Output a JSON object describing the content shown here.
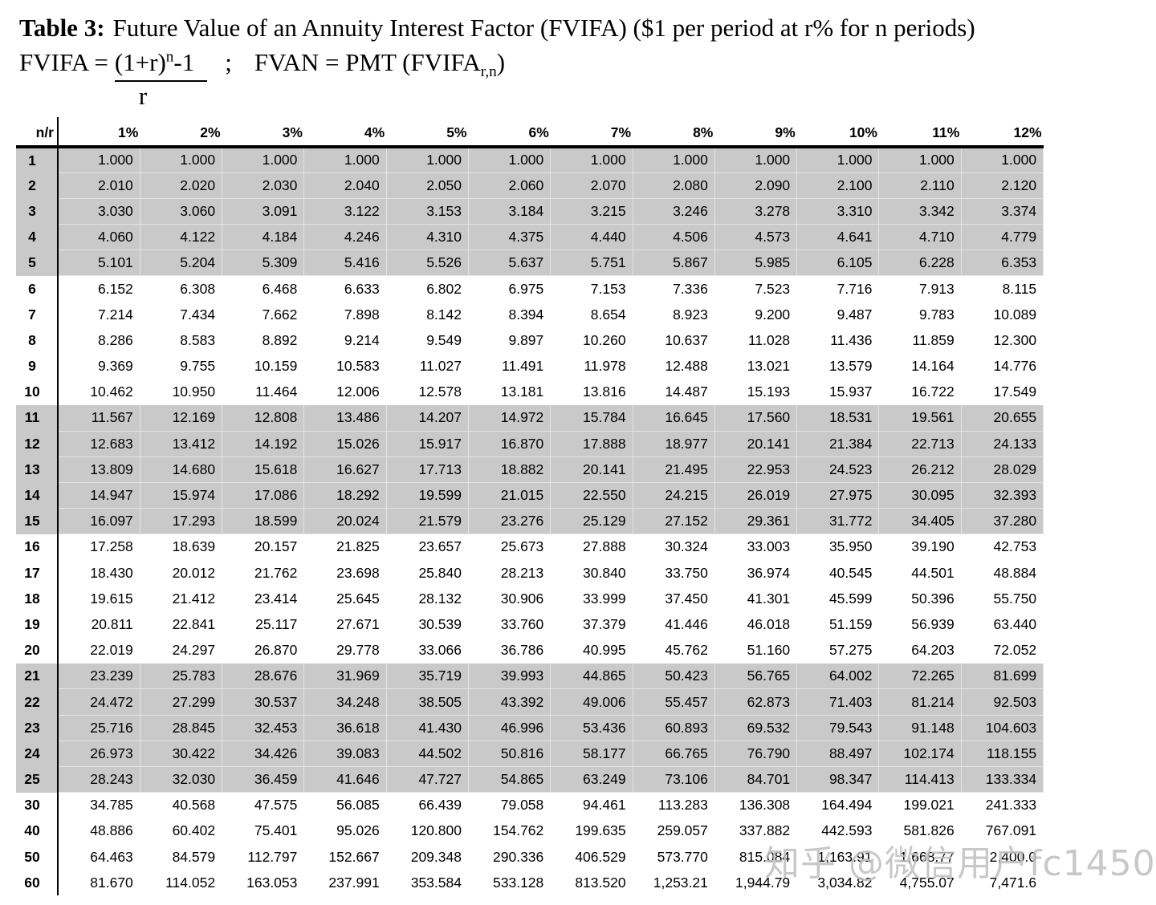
{
  "title": {
    "label": "Table 3:",
    "text": "Future Value of an Annuity Interest Factor (FVIFA) ($1 per period at r% for n periods)"
  },
  "formula": {
    "fvifa_lhs": "FVIFA =",
    "numerator_base": "(1+r)",
    "numerator_exponent": "n",
    "numerator_tail": "-1",
    "denominator": "r",
    "separator": ";",
    "fvan_text": "FVAN = PMT (FVIFA",
    "fvan_subscript": "r,n",
    "fvan_close": ")"
  },
  "watermark": "知乎 @微信用户fc1450",
  "colors": {
    "band_gray": "#c9c9c9",
    "watermark_gray": "#bfbfbf",
    "text": "#000000"
  },
  "table": {
    "corner_label": "n/r",
    "column_headers": [
      "1%",
      "2%",
      "3%",
      "4%",
      "5%",
      "6%",
      "7%",
      "8%",
      "9%",
      "10%",
      "11%",
      "12%"
    ],
    "rows": [
      {
        "n": "1",
        "values": [
          "1.000",
          "1.000",
          "1.000",
          "1.000",
          "1.000",
          "1.000",
          "1.000",
          "1.000",
          "1.000",
          "1.000",
          "1.000",
          "1.000"
        ]
      },
      {
        "n": "2",
        "values": [
          "2.010",
          "2.020",
          "2.030",
          "2.040",
          "2.050",
          "2.060",
          "2.070",
          "2.080",
          "2.090",
          "2.100",
          "2.110",
          "2.120"
        ]
      },
      {
        "n": "3",
        "values": [
          "3.030",
          "3.060",
          "3.091",
          "3.122",
          "3.153",
          "3.184",
          "3.215",
          "3.246",
          "3.278",
          "3.310",
          "3.342",
          "3.374"
        ]
      },
      {
        "n": "4",
        "values": [
          "4.060",
          "4.122",
          "4.184",
          "4.246",
          "4.310",
          "4.375",
          "4.440",
          "4.506",
          "4.573",
          "4.641",
          "4.710",
          "4.779"
        ]
      },
      {
        "n": "5",
        "values": [
          "5.101",
          "5.204",
          "5.309",
          "5.416",
          "5.526",
          "5.637",
          "5.751",
          "5.867",
          "5.985",
          "6.105",
          "6.228",
          "6.353"
        ]
      },
      {
        "n": "6",
        "values": [
          "6.152",
          "6.308",
          "6.468",
          "6.633",
          "6.802",
          "6.975",
          "7.153",
          "7.336",
          "7.523",
          "7.716",
          "7.913",
          "8.115"
        ]
      },
      {
        "n": "7",
        "values": [
          "7.214",
          "7.434",
          "7.662",
          "7.898",
          "8.142",
          "8.394",
          "8.654",
          "8.923",
          "9.200",
          "9.487",
          "9.783",
          "10.089"
        ]
      },
      {
        "n": "8",
        "values": [
          "8.286",
          "8.583",
          "8.892",
          "9.214",
          "9.549",
          "9.897",
          "10.260",
          "10.637",
          "11.028",
          "11.436",
          "11.859",
          "12.300"
        ]
      },
      {
        "n": "9",
        "values": [
          "9.369",
          "9.755",
          "10.159",
          "10.583",
          "11.027",
          "11.491",
          "11.978",
          "12.488",
          "13.021",
          "13.579",
          "14.164",
          "14.776"
        ]
      },
      {
        "n": "10",
        "values": [
          "10.462",
          "10.950",
          "11.464",
          "12.006",
          "12.578",
          "13.181",
          "13.816",
          "14.487",
          "15.193",
          "15.937",
          "16.722",
          "17.549"
        ]
      },
      {
        "n": "11",
        "values": [
          "11.567",
          "12.169",
          "12.808",
          "13.486",
          "14.207",
          "14.972",
          "15.784",
          "16.645",
          "17.560",
          "18.531",
          "19.561",
          "20.655"
        ]
      },
      {
        "n": "12",
        "values": [
          "12.683",
          "13.412",
          "14.192",
          "15.026",
          "15.917",
          "16.870",
          "17.888",
          "18.977",
          "20.141",
          "21.384",
          "22.713",
          "24.133"
        ]
      },
      {
        "n": "13",
        "values": [
          "13.809",
          "14.680",
          "15.618",
          "16.627",
          "17.713",
          "18.882",
          "20.141",
          "21.495",
          "22.953",
          "24.523",
          "26.212",
          "28.029"
        ]
      },
      {
        "n": "14",
        "values": [
          "14.947",
          "15.974",
          "17.086",
          "18.292",
          "19.599",
          "21.015",
          "22.550",
          "24.215",
          "26.019",
          "27.975",
          "30.095",
          "32.393"
        ]
      },
      {
        "n": "15",
        "values": [
          "16.097",
          "17.293",
          "18.599",
          "20.024",
          "21.579",
          "23.276",
          "25.129",
          "27.152",
          "29.361",
          "31.772",
          "34.405",
          "37.280"
        ]
      },
      {
        "n": "16",
        "values": [
          "17.258",
          "18.639",
          "20.157",
          "21.825",
          "23.657",
          "25.673",
          "27.888",
          "30.324",
          "33.003",
          "35.950",
          "39.190",
          "42.753"
        ]
      },
      {
        "n": "17",
        "values": [
          "18.430",
          "20.012",
          "21.762",
          "23.698",
          "25.840",
          "28.213",
          "30.840",
          "33.750",
          "36.974",
          "40.545",
          "44.501",
          "48.884"
        ]
      },
      {
        "n": "18",
        "values": [
          "19.615",
          "21.412",
          "23.414",
          "25.645",
          "28.132",
          "30.906",
          "33.999",
          "37.450",
          "41.301",
          "45.599",
          "50.396",
          "55.750"
        ]
      },
      {
        "n": "19",
        "values": [
          "20.811",
          "22.841",
          "25.117",
          "27.671",
          "30.539",
          "33.760",
          "37.379",
          "41.446",
          "46.018",
          "51.159",
          "56.939",
          "63.440"
        ]
      },
      {
        "n": "20",
        "values": [
          "22.019",
          "24.297",
          "26.870",
          "29.778",
          "33.066",
          "36.786",
          "40.995",
          "45.762",
          "51.160",
          "57.275",
          "64.203",
          "72.052"
        ]
      },
      {
        "n": "21",
        "values": [
          "23.239",
          "25.783",
          "28.676",
          "31.969",
          "35.719",
          "39.993",
          "44.865",
          "50.423",
          "56.765",
          "64.002",
          "72.265",
          "81.699"
        ]
      },
      {
        "n": "22",
        "values": [
          "24.472",
          "27.299",
          "30.537",
          "34.248",
          "38.505",
          "43.392",
          "49.006",
          "55.457",
          "62.873",
          "71.403",
          "81.214",
          "92.503"
        ]
      },
      {
        "n": "23",
        "values": [
          "25.716",
          "28.845",
          "32.453",
          "36.618",
          "41.430",
          "46.996",
          "53.436",
          "60.893",
          "69.532",
          "79.543",
          "91.148",
          "104.603"
        ]
      },
      {
        "n": "24",
        "values": [
          "26.973",
          "30.422",
          "34.426",
          "39.083",
          "44.502",
          "50.816",
          "58.177",
          "66.765",
          "76.790",
          "88.497",
          "102.174",
          "118.155"
        ]
      },
      {
        "n": "25",
        "values": [
          "28.243",
          "32.030",
          "36.459",
          "41.646",
          "47.727",
          "54.865",
          "63.249",
          "73.106",
          "84.701",
          "98.347",
          "114.413",
          "133.334"
        ]
      },
      {
        "n": "30",
        "values": [
          "34.785",
          "40.568",
          "47.575",
          "56.085",
          "66.439",
          "79.058",
          "94.461",
          "113.283",
          "136.308",
          "164.494",
          "199.021",
          "241.333"
        ]
      },
      {
        "n": "40",
        "values": [
          "48.886",
          "60.402",
          "75.401",
          "95.026",
          "120.800",
          "154.762",
          "199.635",
          "259.057",
          "337.882",
          "442.593",
          "581.826",
          "767.091"
        ]
      },
      {
        "n": "50",
        "values": [
          "64.463",
          "84.579",
          "112.797",
          "152.667",
          "209.348",
          "290.336",
          "406.529",
          "573.770",
          "815.084",
          "1,163.91",
          "1,668.77",
          "2,400.0"
        ]
      },
      {
        "n": "60",
        "values": [
          "81.670",
          "114.052",
          "163.053",
          "237.991",
          "353.584",
          "533.128",
          "813.520",
          "1,253.21",
          "1,944.79",
          "3,034.82",
          "4,755.07",
          "7,471.6"
        ]
      }
    ]
  }
}
